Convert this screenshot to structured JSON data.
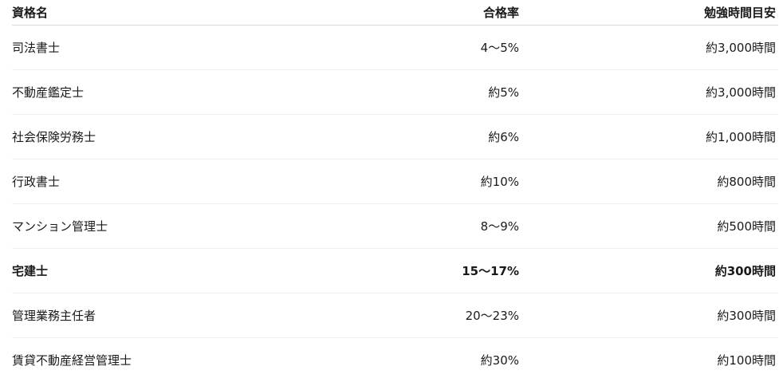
{
  "headers": {
    "name": "資格名",
    "pass_rate": "合格率",
    "study_hours": "勉強時間目安"
  },
  "rows": [
    {
      "name": "司法書士",
      "pass_rate": "4〜5%",
      "study_hours": "約3,000時間",
      "highlighted": false
    },
    {
      "name": "不動産鑑定士",
      "pass_rate": "約5%",
      "study_hours": "約3,000時間",
      "highlighted": false
    },
    {
      "name": "社会保険労務士",
      "pass_rate": "約6%",
      "study_hours": "約1,000時間",
      "highlighted": false
    },
    {
      "name": "行政書士",
      "pass_rate": "約10%",
      "study_hours": "約800時間",
      "highlighted": false
    },
    {
      "name": "マンション管理士",
      "pass_rate": "8〜9%",
      "study_hours": "約500時間",
      "highlighted": false
    },
    {
      "name": "宅建士",
      "pass_rate": "15〜17%",
      "study_hours": "約300時間",
      "highlighted": true
    },
    {
      "name": "管理業務主任者",
      "pass_rate": "20〜23%",
      "study_hours": "約300時間",
      "highlighted": false
    },
    {
      "name": "賃貸不動産経営管理士",
      "pass_rate": "約30%",
      "study_hours": "約100時間",
      "highlighted": false
    }
  ]
}
